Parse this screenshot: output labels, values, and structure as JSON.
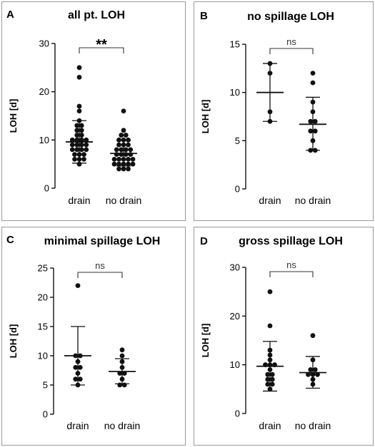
{
  "chart_data": [
    {
      "type": "scatter",
      "panel_letter": "A",
      "title": "all pt. LOH",
      "ylabel": "LOH [d]",
      "ylim": [
        0,
        30
      ],
      "yticks": [
        0,
        10,
        20,
        30
      ],
      "categories": [
        "drain",
        "no drain"
      ],
      "significance": "**",
      "groups": [
        {
          "name": "drain",
          "mean": 9.6,
          "sd_low": 5.2,
          "sd_high": 14.0,
          "values": [
            25,
            23,
            17,
            16,
            14,
            13,
            13,
            12,
            12,
            11,
            11,
            10,
            10,
            10,
            10,
            9,
            9,
            9,
            9,
            8,
            8,
            8,
            8,
            7,
            7,
            7,
            6,
            6,
            6,
            5
          ]
        },
        {
          "name": "no drain",
          "mean": 7.2,
          "sd_low": 4.6,
          "sd_high": 9.9,
          "values": [
            16,
            12,
            11,
            11,
            10,
            10,
            10,
            9,
            9,
            9,
            8,
            8,
            8,
            8,
            7,
            7,
            7,
            7,
            6,
            6,
            6,
            6,
            6,
            5,
            5,
            5,
            5,
            5,
            4,
            4,
            4
          ]
        }
      ]
    },
    {
      "type": "scatter",
      "panel_letter": "B",
      "title": "no spillage LOH",
      "ylabel": "LOH [d]",
      "ylim": [
        0,
        15
      ],
      "yticks": [
        0,
        5,
        10,
        15
      ],
      "categories": [
        "drain",
        "no drain"
      ],
      "significance": "ns",
      "groups": [
        {
          "name": "drain",
          "mean": 10.0,
          "sd_low": 7.0,
          "sd_high": 13.0,
          "values": [
            13,
            12,
            8,
            7
          ]
        },
        {
          "name": "no drain",
          "mean": 6.7,
          "sd_low": 4.0,
          "sd_high": 9.5,
          "values": [
            12,
            11,
            9,
            8,
            7,
            7,
            6,
            6,
            5,
            4,
            4
          ]
        }
      ]
    },
    {
      "type": "scatter",
      "panel_letter": "C",
      "title": "minimal spillage LOH",
      "ylabel": "LOH [d]",
      "ylim": [
        0,
        25
      ],
      "yticks": [
        0,
        5,
        10,
        15,
        20,
        25
      ],
      "categories": [
        "drain",
        "no drain"
      ],
      "significance": "ns",
      "groups": [
        {
          "name": "drain",
          "mean": 10.0,
          "sd_low": 5.0,
          "sd_high": 15.0,
          "values": [
            22,
            10,
            10,
            9,
            8,
            8,
            7,
            6,
            6,
            5
          ]
        },
        {
          "name": "no drain",
          "mean": 7.3,
          "sd_low": 5.2,
          "sd_high": 9.5,
          "values": [
            11,
            10,
            9,
            8,
            7,
            7,
            6,
            5,
            5
          ]
        }
      ]
    },
    {
      "type": "scatter",
      "panel_letter": "D",
      "title": "gross spillage LOH",
      "ylabel": "LOH [d]",
      "ylim": [
        0,
        30
      ],
      "yticks": [
        0,
        10,
        20,
        30
      ],
      "categories": [
        "drain",
        "no drain"
      ],
      "significance": "ns",
      "groups": [
        {
          "name": "drain",
          "mean": 9.7,
          "sd_low": 4.6,
          "sd_high": 14.8,
          "values": [
            25,
            18,
            13,
            12,
            11,
            10,
            10,
            10,
            9,
            8,
            8,
            7,
            7,
            6,
            6,
            5
          ]
        },
        {
          "name": "no drain",
          "mean": 8.4,
          "sd_low": 5.2,
          "sd_high": 11.7,
          "values": [
            16,
            11,
            9,
            9,
            8,
            8,
            8,
            7,
            6
          ]
        }
      ]
    }
  ]
}
